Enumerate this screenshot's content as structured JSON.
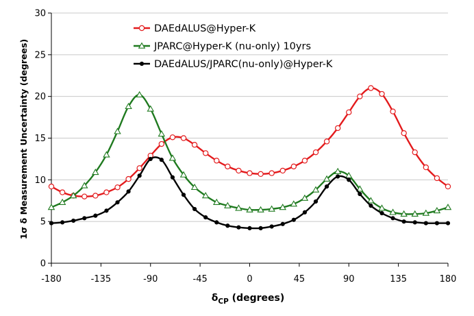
{
  "chart_data": {
    "type": "line",
    "title": "",
    "ylabel": "1σ δ Measurement Uncertainty (degrees)",
    "xlabel": {
      "main": "δ",
      "sub": "CP",
      "suffix": " (degrees)"
    },
    "xlim": [
      -180,
      180
    ],
    "ylim": [
      0,
      30
    ],
    "xticks": [
      -180,
      -135,
      -90,
      -45,
      0,
      45,
      90,
      135,
      180
    ],
    "yticks": [
      0,
      5,
      10,
      15,
      20,
      25,
      30
    ],
    "grid": "horizontal",
    "legend_position": "top-center",
    "x": [
      -180,
      -170,
      -160,
      -150,
      -140,
      -130,
      -120,
      -110,
      -100,
      -90,
      -80,
      -70,
      -60,
      -50,
      -40,
      -30,
      -20,
      -10,
      0,
      10,
      20,
      30,
      40,
      50,
      60,
      70,
      80,
      90,
      100,
      110,
      120,
      130,
      140,
      150,
      160,
      170,
      180
    ],
    "series": [
      {
        "name": "DAEdALUS@Hyper-K",
        "color": "#e31a1c",
        "marker": "circle",
        "marker_fill": "#ffffff",
        "values": [
          9.2,
          8.5,
          8.1,
          8.0,
          8.1,
          8.5,
          9.1,
          10.1,
          11.4,
          12.9,
          14.3,
          15.1,
          15.0,
          14.2,
          13.2,
          12.3,
          11.6,
          11.1,
          10.8,
          10.7,
          10.8,
          11.1,
          11.6,
          12.3,
          13.3,
          14.6,
          16.2,
          18.1,
          20.0,
          21.0,
          20.3,
          18.2,
          15.6,
          13.3,
          11.5,
          10.2,
          9.2
        ]
      },
      {
        "name": "JPARC@Hyper-K (nu-only) 10yrs",
        "color": "#1f7a1f",
        "marker": "triangle",
        "marker_fill": "#ffffff",
        "values": [
          6.7,
          7.3,
          8.1,
          9.3,
          10.9,
          13.0,
          15.8,
          18.8,
          20.2,
          18.5,
          15.5,
          12.6,
          10.6,
          9.1,
          8.1,
          7.3,
          6.9,
          6.6,
          6.4,
          6.4,
          6.5,
          6.7,
          7.1,
          7.8,
          8.8,
          10.1,
          11.0,
          10.5,
          8.9,
          7.5,
          6.6,
          6.1,
          5.9,
          5.9,
          6.0,
          6.3,
          6.7
        ]
      },
      {
        "name": "DAEdALUS/JPARC(nu-only)@Hyper-K",
        "color": "#000000",
        "marker": "dot",
        "marker_fill": "#000000",
        "values": [
          4.8,
          4.9,
          5.1,
          5.4,
          5.7,
          6.3,
          7.3,
          8.6,
          10.5,
          12.5,
          12.4,
          10.3,
          8.2,
          6.5,
          5.5,
          4.9,
          4.5,
          4.3,
          4.2,
          4.2,
          4.4,
          4.7,
          5.2,
          6.1,
          7.4,
          9.2,
          10.4,
          10.0,
          8.3,
          6.9,
          6.0,
          5.4,
          5.0,
          4.9,
          4.8,
          4.8,
          4.8
        ]
      }
    ]
  }
}
